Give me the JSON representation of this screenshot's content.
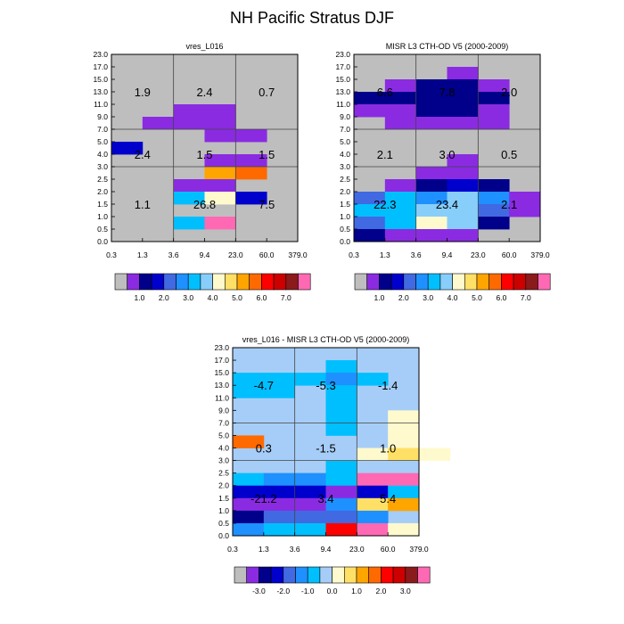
{
  "title": "NH Pacific Stratus DJF",
  "chart_data": [
    {
      "type": "heatmap",
      "title": "vres_L016",
      "x_ticks": [
        "0.3",
        "1.3",
        "3.6",
        "9.4",
        "23.0",
        "60.0",
        "379.0"
      ],
      "y_ticks": [
        "0.0",
        "0.5",
        "1.0",
        "1.5",
        "2.0",
        "2.5",
        "3.0",
        "4.0",
        "5.0",
        "7.0",
        "9.0",
        "11.0",
        "13.0",
        "15.0",
        "17.0",
        "23.0"
      ],
      "grid": true,
      "colorbar": {
        "colors": [
          "#bebebe",
          "#8a2be2",
          "#00008b",
          "#0000cd",
          "#4169e1",
          "#1e90ff",
          "#00bfff",
          "#87cefa",
          "#fffacd",
          "#ffe066",
          "#ffa500",
          "#ff6a00",
          "#ff0000",
          "#cd0000",
          "#8b1a1a",
          "#ff69b4"
        ],
        "labels": [
          "1.0",
          "2.0",
          "3.0",
          "4.0",
          "5.0",
          "6.0",
          "7.0"
        ],
        "label_after_box": [
          2,
          4,
          6,
          8,
          10,
          12,
          14
        ]
      },
      "cells": [
        {
          "col": 2,
          "row": 10,
          "color": "#8a2be2"
        },
        {
          "col": 3,
          "row": 10,
          "color": "#8a2be2"
        },
        {
          "col": 1,
          "row": 9,
          "color": "#8a2be2"
        },
        {
          "col": 2,
          "row": 9,
          "color": "#8a2be2"
        },
        {
          "col": 3,
          "row": 9,
          "color": "#8a2be2"
        },
        {
          "col": 3,
          "row": 8,
          "color": "#8a2be2"
        },
        {
          "col": 4,
          "row": 8,
          "color": "#8a2be2"
        },
        {
          "col": 0,
          "row": 7,
          "color": "#0000cd"
        },
        {
          "col": 3,
          "row": 6,
          "color": "#8a2be2"
        },
        {
          "col": 4,
          "row": 6,
          "color": "#8a2be2"
        },
        {
          "col": 3,
          "row": 5,
          "color": "#ffa500"
        },
        {
          "col": 4,
          "row": 5,
          "color": "#ff6a00"
        },
        {
          "col": 2,
          "row": 4,
          "color": "#8a2be2"
        },
        {
          "col": 3,
          "row": 4,
          "color": "#8a2be2"
        },
        {
          "col": 2,
          "row": 3,
          "color": "#00bfff"
        },
        {
          "col": 3,
          "row": 3,
          "color": "#fffacd"
        },
        {
          "col": 4,
          "row": 3,
          "color": "#0000cd"
        },
        {
          "col": 2,
          "row": 1,
          "color": "#00bfff"
        },
        {
          "col": 3,
          "row": 1,
          "color": "#ff69b4"
        }
      ],
      "annotations": [
        {
          "x": 1,
          "y": 12,
          "text": "1.9"
        },
        {
          "x": 3,
          "y": 12,
          "text": "2.4"
        },
        {
          "x": 5,
          "y": 12,
          "text": "0.7"
        },
        {
          "x": 1,
          "y": 7,
          "text": "2.4"
        },
        {
          "x": 3,
          "y": 7,
          "text": "1.5"
        },
        {
          "x": 5,
          "y": 7,
          "text": "1.5"
        },
        {
          "x": 1,
          "y": 3,
          "text": "1.1"
        },
        {
          "x": 3,
          "y": 3,
          "text": "26.8"
        },
        {
          "x": 5,
          "y": 3,
          "text": "7.5"
        }
      ]
    },
    {
      "type": "heatmap",
      "title": "MISR L3 CTH-OD V5 (2000-2009)",
      "x_ticks": [
        "0.3",
        "1.3",
        "3.6",
        "9.4",
        "23.0",
        "60.0",
        "379.0"
      ],
      "y_ticks": [
        "0.0",
        "0.5",
        "1.0",
        "1.5",
        "2.0",
        "2.5",
        "3.0",
        "4.0",
        "5.0",
        "7.0",
        "9.0",
        "11.0",
        "13.0",
        "15.0",
        "17.0",
        "23.0"
      ],
      "grid": true,
      "colorbar": {
        "colors": [
          "#bebebe",
          "#8a2be2",
          "#00008b",
          "#0000cd",
          "#4169e1",
          "#1e90ff",
          "#00bfff",
          "#87cefa",
          "#fffacd",
          "#ffe066",
          "#ffa500",
          "#ff6a00",
          "#ff0000",
          "#cd0000",
          "#8b1a1a",
          "#ff69b4"
        ],
        "labels": [
          "1.0",
          "2.0",
          "3.0",
          "4.0",
          "5.0",
          "6.0",
          "7.0"
        ],
        "label_after_box": [
          2,
          4,
          6,
          8,
          10,
          12,
          14
        ]
      },
      "cells": [
        {
          "col": 3,
          "row": 13,
          "color": "#8a2be2"
        },
        {
          "col": 1,
          "row": 12,
          "color": "#8a2be2"
        },
        {
          "col": 2,
          "row": 12,
          "color": "#00008b"
        },
        {
          "col": 3,
          "row": 12,
          "color": "#00008b"
        },
        {
          "col": 4,
          "row": 12,
          "color": "#8a2be2"
        },
        {
          "col": 0,
          "row": 11,
          "color": "#00008b"
        },
        {
          "col": 1,
          "row": 11,
          "color": "#00008b"
        },
        {
          "col": 2,
          "row": 11,
          "color": "#00008b"
        },
        {
          "col": 3,
          "row": 11,
          "color": "#00008b"
        },
        {
          "col": 4,
          "row": 11,
          "color": "#00008b"
        },
        {
          "col": 0,
          "row": 10,
          "color": "#8a2be2"
        },
        {
          "col": 1,
          "row": 10,
          "color": "#8a2be2"
        },
        {
          "col": 2,
          "row": 10,
          "color": "#00008b"
        },
        {
          "col": 3,
          "row": 10,
          "color": "#00008b"
        },
        {
          "col": 4,
          "row": 10,
          "color": "#8a2be2"
        },
        {
          "col": 1,
          "row": 9,
          "color": "#8a2be2"
        },
        {
          "col": 2,
          "row": 9,
          "color": "#8a2be2"
        },
        {
          "col": 3,
          "row": 9,
          "color": "#8a2be2"
        },
        {
          "col": 4,
          "row": 9,
          "color": "#8a2be2"
        },
        {
          "col": 3,
          "row": 6,
          "color": "#8a2be2"
        },
        {
          "col": 2,
          "row": 5,
          "color": "#8a2be2"
        },
        {
          "col": 3,
          "row": 5,
          "color": "#8a2be2"
        },
        {
          "col": 1,
          "row": 4,
          "color": "#8a2be2"
        },
        {
          "col": 2,
          "row": 4,
          "color": "#00008b"
        },
        {
          "col": 3,
          "row": 4,
          "color": "#0000cd"
        },
        {
          "col": 4,
          "row": 4,
          "color": "#00008b"
        },
        {
          "col": 0,
          "row": 3,
          "color": "#4169e1"
        },
        {
          "col": 1,
          "row": 3,
          "color": "#00bfff"
        },
        {
          "col": 2,
          "row": 3,
          "color": "#1e90ff"
        },
        {
          "col": 3,
          "row": 3,
          "color": "#87cefa"
        },
        {
          "col": 4,
          "row": 3,
          "color": "#1e90ff"
        },
        {
          "col": 5,
          "row": 3,
          "color": "#8a2be2"
        },
        {
          "col": 0,
          "row": 2,
          "color": "#00bfff"
        },
        {
          "col": 1,
          "row": 2,
          "color": "#00bfff"
        },
        {
          "col": 2,
          "row": 2,
          "color": "#87cefa"
        },
        {
          "col": 3,
          "row": 2,
          "color": "#87cefa"
        },
        {
          "col": 4,
          "row": 2,
          "color": "#4169e1"
        },
        {
          "col": 5,
          "row": 2,
          "color": "#8a2be2"
        },
        {
          "col": 0,
          "row": 1,
          "color": "#4169e1"
        },
        {
          "col": 1,
          "row": 1,
          "color": "#00bfff"
        },
        {
          "col": 2,
          "row": 1,
          "color": "#fffacd"
        },
        {
          "col": 3,
          "row": 1,
          "color": "#87cefa"
        },
        {
          "col": 4,
          "row": 1,
          "color": "#00008b"
        },
        {
          "col": 0,
          "row": 0,
          "color": "#00008b"
        },
        {
          "col": 1,
          "row": 0,
          "color": "#8a2be2"
        },
        {
          "col": 2,
          "row": 0,
          "color": "#8a2be2"
        },
        {
          "col": 3,
          "row": 0,
          "color": "#8a2be2"
        }
      ],
      "annotations": [
        {
          "x": 1,
          "y": 12,
          "text": "6.6"
        },
        {
          "x": 3,
          "y": 12,
          "text": "7.8"
        },
        {
          "x": 5,
          "y": 12,
          "text": "2.0"
        },
        {
          "x": 1,
          "y": 7,
          "text": "2.1"
        },
        {
          "x": 3,
          "y": 7,
          "text": "3.0"
        },
        {
          "x": 5,
          "y": 7,
          "text": "0.5"
        },
        {
          "x": 1,
          "y": 3,
          "text": "22.3"
        },
        {
          "x": 3,
          "y": 3,
          "text": "23.4"
        },
        {
          "x": 5,
          "y": 3,
          "text": "2.1"
        }
      ]
    },
    {
      "type": "heatmap",
      "title": "vres_L016 - MISR L3 CTH-OD V5 (2000-2009)",
      "x_ticks": [
        "0.3",
        "1.3",
        "3.6",
        "9.4",
        "23.0",
        "60.0",
        "379.0"
      ],
      "y_ticks": [
        "0.0",
        "0.5",
        "1.0",
        "1.5",
        "2.0",
        "2.5",
        "3.0",
        "4.0",
        "5.0",
        "7.0",
        "9.0",
        "11.0",
        "13.0",
        "15.0",
        "17.0",
        "23.0"
      ],
      "grid": true,
      "background": "#a6cdf7",
      "colorbar": {
        "colors": [
          "#bebebe",
          "#8a2be2",
          "#00008b",
          "#0000cd",
          "#4169e1",
          "#1e90ff",
          "#00bfff",
          "#a6cdf7",
          "#fffacd",
          "#ffe066",
          "#ffa500",
          "#ff6a00",
          "#ff0000",
          "#cd0000",
          "#8b1a1a",
          "#ff69b4"
        ],
        "labels": [
          "-3.0",
          "-2.0",
          "-1.0",
          "0.0",
          "1.0",
          "2.0",
          "3.0"
        ],
        "label_after_box": [
          2,
          4,
          6,
          8,
          10,
          12,
          14
        ]
      },
      "cells": [
        {
          "col": 3,
          "row": 13,
          "color": "#00bfff"
        },
        {
          "col": 0,
          "row": 12,
          "color": "#00bfff"
        },
        {
          "col": 1,
          "row": 12,
          "color": "#00bfff"
        },
        {
          "col": 2,
          "row": 12,
          "color": "#00bfff"
        },
        {
          "col": 3,
          "row": 12,
          "color": "#1e90ff"
        },
        {
          "col": 4,
          "row": 12,
          "color": "#00bfff"
        },
        {
          "col": 0,
          "row": 11,
          "color": "#00bfff"
        },
        {
          "col": 1,
          "row": 11,
          "color": "#00bfff"
        },
        {
          "col": 3,
          "row": 11,
          "color": "#00bfff"
        },
        {
          "col": 3,
          "row": 10,
          "color": "#00bfff"
        },
        {
          "col": 3,
          "row": 9,
          "color": "#00bfff"
        },
        {
          "col": 5,
          "row": 9,
          "color": "#fffacd"
        },
        {
          "col": 3,
          "row": 8,
          "color": "#00bfff"
        },
        {
          "col": 5,
          "row": 8,
          "color": "#fffacd"
        },
        {
          "col": 0,
          "row": 7,
          "color": "#ff6a00"
        },
        {
          "col": 5,
          "row": 7,
          "color": "#fffacd"
        },
        {
          "col": 4,
          "row": 6,
          "color": "#fffacd"
        },
        {
          "col": 5,
          "row": 6,
          "color": "#ffe066"
        },
        {
          "col": 6,
          "row": 6,
          "color": "#fffacd"
        },
        {
          "col": 3,
          "row": 5,
          "color": "#00bfff"
        },
        {
          "col": 0,
          "row": 4,
          "color": "#00bfff"
        },
        {
          "col": 1,
          "row": 4,
          "color": "#1e90ff"
        },
        {
          "col": 2,
          "row": 4,
          "color": "#1e90ff"
        },
        {
          "col": 3,
          "row": 4,
          "color": "#00bfff"
        },
        {
          "col": 4,
          "row": 4,
          "color": "#ff69b4"
        },
        {
          "col": 5,
          "row": 4,
          "color": "#ff69b4"
        },
        {
          "col": 0,
          "row": 3,
          "color": "#0000cd"
        },
        {
          "col": 1,
          "row": 3,
          "color": "#0000cd"
        },
        {
          "col": 2,
          "row": 3,
          "color": "#0000cd"
        },
        {
          "col": 3,
          "row": 3,
          "color": "#8a2be2"
        },
        {
          "col": 4,
          "row": 3,
          "color": "#0000cd"
        },
        {
          "col": 5,
          "row": 3,
          "color": "#00bfff"
        },
        {
          "col": 0,
          "row": 2,
          "color": "#8a2be2"
        },
        {
          "col": 1,
          "row": 2,
          "color": "#8a2be2"
        },
        {
          "col": 2,
          "row": 2,
          "color": "#8a2be2"
        },
        {
          "col": 3,
          "row": 2,
          "color": "#1e90ff"
        },
        {
          "col": 4,
          "row": 2,
          "color": "#ffe066"
        },
        {
          "col": 5,
          "row": 2,
          "color": "#ffa500"
        },
        {
          "col": 0,
          "row": 1,
          "color": "#00008b"
        },
        {
          "col": 1,
          "row": 1,
          "color": "#4169e1"
        },
        {
          "col": 2,
          "row": 1,
          "color": "#4169e1"
        },
        {
          "col": 3,
          "row": 1,
          "color": "#4169e1"
        },
        {
          "col": 4,
          "row": 1,
          "color": "#1e90ff"
        },
        {
          "col": 0,
          "row": 0,
          "color": "#1e90ff"
        },
        {
          "col": 1,
          "row": 0,
          "color": "#00bfff"
        },
        {
          "col": 2,
          "row": 0,
          "color": "#00bfff"
        },
        {
          "col": 3,
          "row": 0,
          "color": "#ff0000"
        },
        {
          "col": 4,
          "row": 0,
          "color": "#ff69b4"
        },
        {
          "col": 5,
          "row": 0,
          "color": "#fffacd"
        }
      ],
      "annotations": [
        {
          "x": 1,
          "y": 12,
          "text": "-4.7"
        },
        {
          "x": 3,
          "y": 12,
          "text": "-5.3"
        },
        {
          "x": 5,
          "y": 12,
          "text": "-1.4"
        },
        {
          "x": 1,
          "y": 7,
          "text": "0.3"
        },
        {
          "x": 3,
          "y": 7,
          "text": "-1.5"
        },
        {
          "x": 5,
          "y": 7,
          "text": "1.0"
        },
        {
          "x": 1,
          "y": 3,
          "text": "-21.2"
        },
        {
          "x": 3,
          "y": 3,
          "text": "3.4"
        },
        {
          "x": 5,
          "y": 3,
          "text": "5.4"
        }
      ]
    }
  ]
}
